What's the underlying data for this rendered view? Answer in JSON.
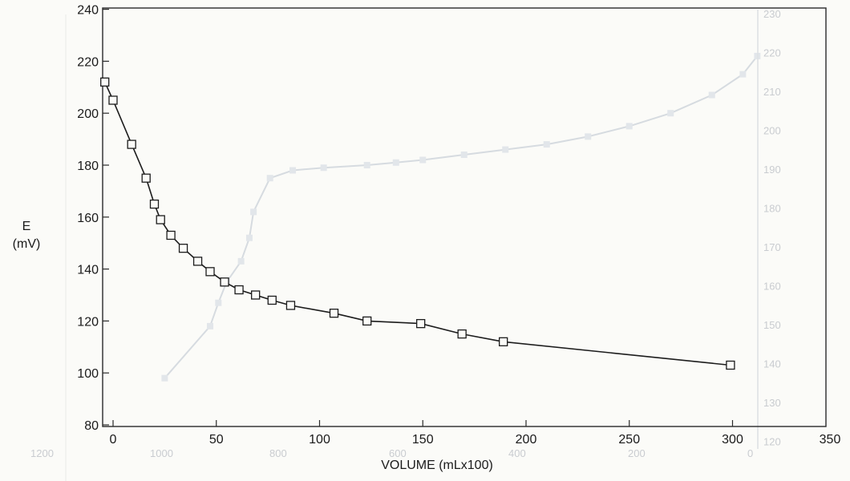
{
  "chart_data": {
    "type": "line",
    "xlabel": "VOLUME (mLx100)",
    "ylabel": "E",
    "ylabel_unit": "(mV)",
    "xlim": [
      -5,
      350
    ],
    "ylim": [
      80,
      240
    ],
    "x_ticks": [
      0,
      50,
      100,
      150,
      200,
      250,
      300,
      350
    ],
    "y_ticks": [
      80,
      100,
      120,
      140,
      160,
      180,
      200,
      220,
      240
    ],
    "grid": false,
    "marker": "square",
    "series": [
      {
        "x": [
          -4,
          0,
          9,
          16,
          20,
          23,
          28,
          34,
          41,
          47,
          54,
          61,
          69,
          77,
          86,
          107,
          123,
          149,
          169,
          189,
          299
        ],
        "y": [
          212,
          205,
          188,
          175,
          165,
          159,
          153,
          148,
          143,
          139,
          135,
          132,
          130,
          128,
          126,
          123,
          120,
          119,
          115,
          112,
          103
        ]
      }
    ],
    "background_faint_curve": {
      "x": [
        25,
        47,
        51,
        55,
        62,
        66,
        68,
        76,
        87,
        102,
        123,
        137,
        150,
        170,
        190,
        210,
        230,
        250,
        270,
        290,
        305,
        312
      ],
      "y": [
        98,
        118,
        127,
        135,
        143,
        152,
        162,
        175,
        178,
        179,
        180,
        181,
        182,
        184,
        186,
        188,
        191,
        195,
        200,
        207,
        215,
        222
      ]
    },
    "background_faint_right_ticks": [
      "230",
      "220",
      "210",
      "200",
      "190",
      "180",
      "170",
      "160",
      "150",
      "140",
      "130",
      "120"
    ],
    "background_faint_bottom_ticks": [
      "1200",
      "1000",
      "800",
      "600",
      "400",
      "200",
      "0"
    ]
  }
}
